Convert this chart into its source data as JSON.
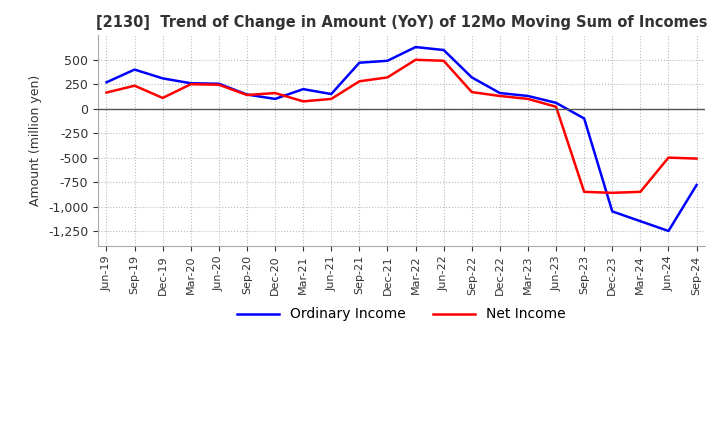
{
  "title": "[2130]  Trend of Change in Amount (YoY) of 12Mo Moving Sum of Incomes",
  "ylabel": "Amount (million yen)",
  "ylim": [
    -1400,
    750
  ],
  "yticks": [
    500,
    250,
    0,
    -250,
    -500,
    -750,
    -1000,
    -1250
  ],
  "background_color": "#ffffff",
  "grid_color": "#bbbbbb",
  "ordinary_income_color": "#0000ff",
  "net_income_color": "#ff0000",
  "x_labels": [
    "Jun-19",
    "Sep-19",
    "Dec-19",
    "Mar-20",
    "Jun-20",
    "Sep-20",
    "Dec-20",
    "Mar-21",
    "Jun-21",
    "Sep-21",
    "Dec-21",
    "Mar-22",
    "Jun-22",
    "Sep-22",
    "Dec-22",
    "Mar-23",
    "Jun-23",
    "Sep-23",
    "Dec-23",
    "Mar-24",
    "Jun-24",
    "Sep-24"
  ],
  "ordinary_income": [
    270,
    400,
    310,
    260,
    255,
    145,
    100,
    200,
    150,
    470,
    490,
    630,
    600,
    320,
    160,
    130,
    60,
    -100,
    -1050,
    -1150,
    -1250,
    -780
  ],
  "net_income": [
    165,
    235,
    110,
    250,
    245,
    140,
    160,
    75,
    100,
    280,
    320,
    500,
    490,
    170,
    130,
    100,
    20,
    -850,
    -860,
    -850,
    -500,
    -510
  ]
}
